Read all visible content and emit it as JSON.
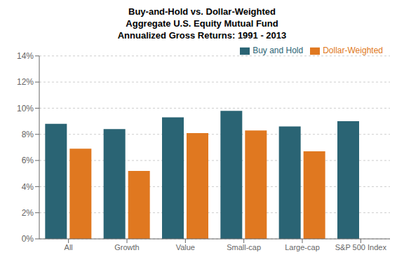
{
  "chart_data": {
    "type": "bar",
    "title": "Buy-and-Hold vs. Dollar-Weighted\nAggregate U.S. Equity Mutual Fund\nAnnualized Gross Returns: 1991 - 2013",
    "categories": [
      "All",
      "Growth",
      "Value",
      "Small-cap",
      "Large-cap",
      "S&P 500 Index"
    ],
    "series": [
      {
        "name": "Buy and Hold",
        "color": "#2a6474",
        "values": [
          0.088,
          0.084,
          0.093,
          0.098,
          0.086,
          0.09
        ]
      },
      {
        "name": "Dollar-Weighted",
        "color": "#e07820",
        "values": [
          0.069,
          0.052,
          0.081,
          0.083,
          0.067,
          null
        ]
      }
    ],
    "ylim": [
      0,
      0.14
    ],
    "yticks": [
      {
        "value": 0,
        "label": "0%"
      },
      {
        "value": 0.02,
        "label": "2%"
      },
      {
        "value": 0.04,
        "label": "4%"
      },
      {
        "value": 0.06,
        "label": "6%"
      },
      {
        "value": 0.08,
        "label": "8%"
      },
      {
        "value": 0.1,
        "label": "10%"
      },
      {
        "value": 0.12,
        "label": "12%"
      },
      {
        "value": 0.14,
        "label": "14%"
      }
    ],
    "grid": true,
    "legend": "upper right"
  }
}
